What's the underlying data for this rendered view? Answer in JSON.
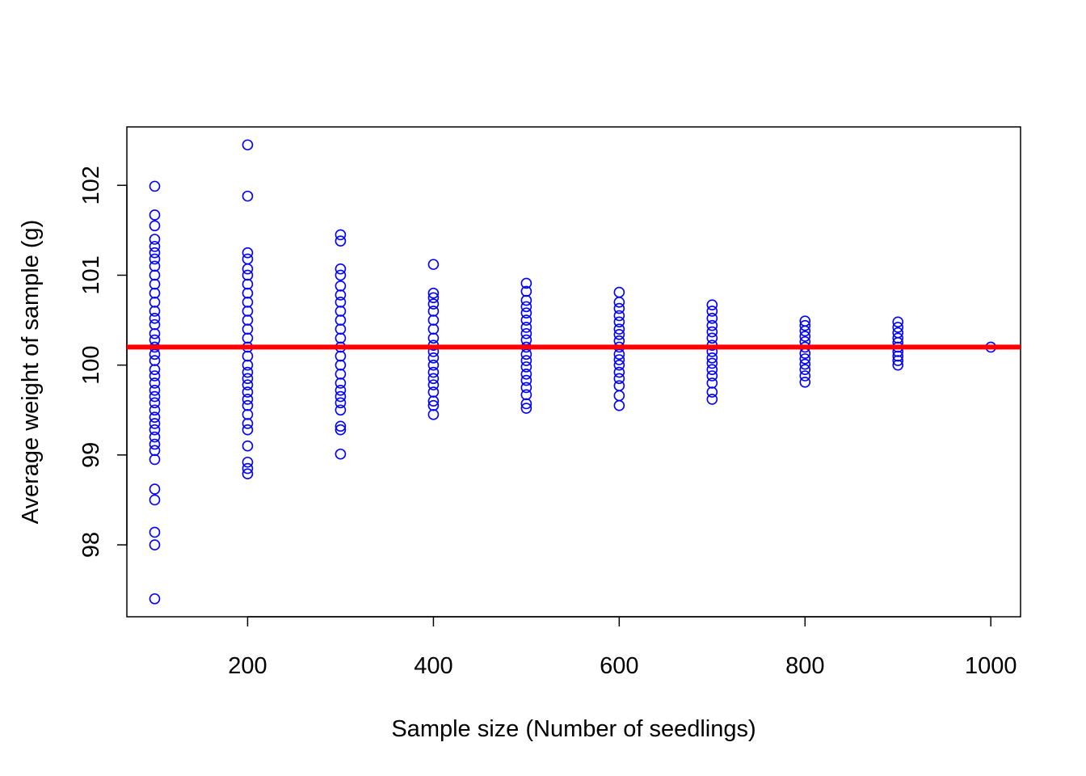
{
  "chart_data": {
    "type": "scatter",
    "title": "",
    "xlabel": "Sample size (Number of seedlings)",
    "ylabel": "Average weight of sample (g)",
    "xlim": [
      70,
      1032
    ],
    "ylim": [
      97.2,
      102.65
    ],
    "x_ticks": [
      200,
      400,
      600,
      800,
      1000
    ],
    "y_ticks": [
      98,
      99,
      100,
      101,
      102
    ],
    "grid": false,
    "legend": "none",
    "point_color": "#0000FF",
    "reference_line": {
      "y": 100.2,
      "color": "#FF0000"
    },
    "series": [
      {
        "points": [
          {
            "x": 100,
            "y": 97.4
          },
          {
            "x": 100,
            "y": 98.0
          },
          {
            "x": 100,
            "y": 98.14
          },
          {
            "x": 100,
            "y": 98.5
          },
          {
            "x": 100,
            "y": 98.62
          },
          {
            "x": 100,
            "y": 98.95
          },
          {
            "x": 100,
            "y": 99.05
          },
          {
            "x": 100,
            "y": 99.12
          },
          {
            "x": 100,
            "y": 99.2
          },
          {
            "x": 100,
            "y": 99.28
          },
          {
            "x": 100,
            "y": 99.35
          },
          {
            "x": 100,
            "y": 99.42
          },
          {
            "x": 100,
            "y": 99.5
          },
          {
            "x": 100,
            "y": 99.58
          },
          {
            "x": 100,
            "y": 99.65
          },
          {
            "x": 100,
            "y": 99.72
          },
          {
            "x": 100,
            "y": 99.8
          },
          {
            "x": 100,
            "y": 99.88
          },
          {
            "x": 100,
            "y": 99.95
          },
          {
            "x": 100,
            "y": 100.05
          },
          {
            "x": 100,
            "y": 100.12
          },
          {
            "x": 100,
            "y": 100.2
          },
          {
            "x": 100,
            "y": 100.28
          },
          {
            "x": 100,
            "y": 100.35
          },
          {
            "x": 100,
            "y": 100.45
          },
          {
            "x": 100,
            "y": 100.52
          },
          {
            "x": 100,
            "y": 100.6
          },
          {
            "x": 100,
            "y": 100.7
          },
          {
            "x": 100,
            "y": 100.8
          },
          {
            "x": 100,
            "y": 100.9
          },
          {
            "x": 100,
            "y": 101.0
          },
          {
            "x": 100,
            "y": 101.1
          },
          {
            "x": 100,
            "y": 101.18
          },
          {
            "x": 100,
            "y": 101.25
          },
          {
            "x": 100,
            "y": 101.32
          },
          {
            "x": 100,
            "y": 101.4
          },
          {
            "x": 100,
            "y": 101.55
          },
          {
            "x": 100,
            "y": 101.67
          },
          {
            "x": 100,
            "y": 101.99
          },
          {
            "x": 200,
            "y": 98.79
          },
          {
            "x": 200,
            "y": 98.85
          },
          {
            "x": 200,
            "y": 98.92
          },
          {
            "x": 200,
            "y": 99.1
          },
          {
            "x": 200,
            "y": 99.28
          },
          {
            "x": 200,
            "y": 99.35
          },
          {
            "x": 200,
            "y": 99.45
          },
          {
            "x": 200,
            "y": 99.55
          },
          {
            "x": 200,
            "y": 99.62
          },
          {
            "x": 200,
            "y": 99.7
          },
          {
            "x": 200,
            "y": 99.78
          },
          {
            "x": 200,
            "y": 99.85
          },
          {
            "x": 200,
            "y": 99.92
          },
          {
            "x": 200,
            "y": 100.0
          },
          {
            "x": 200,
            "y": 100.1
          },
          {
            "x": 200,
            "y": 100.2
          },
          {
            "x": 200,
            "y": 100.3
          },
          {
            "x": 200,
            "y": 100.4
          },
          {
            "x": 200,
            "y": 100.5
          },
          {
            "x": 200,
            "y": 100.6
          },
          {
            "x": 200,
            "y": 100.7
          },
          {
            "x": 200,
            "y": 100.8
          },
          {
            "x": 200,
            "y": 100.9
          },
          {
            "x": 200,
            "y": 101.0
          },
          {
            "x": 200,
            "y": 101.07
          },
          {
            "x": 200,
            "y": 101.18
          },
          {
            "x": 200,
            "y": 101.25
          },
          {
            "x": 200,
            "y": 101.88
          },
          {
            "x": 200,
            "y": 102.45
          },
          {
            "x": 300,
            "y": 99.01
          },
          {
            "x": 300,
            "y": 99.28
          },
          {
            "x": 300,
            "y": 99.32
          },
          {
            "x": 300,
            "y": 99.5
          },
          {
            "x": 300,
            "y": 99.58
          },
          {
            "x": 300,
            "y": 99.65
          },
          {
            "x": 300,
            "y": 99.72
          },
          {
            "x": 300,
            "y": 99.8
          },
          {
            "x": 300,
            "y": 99.9
          },
          {
            "x": 300,
            "y": 100.0
          },
          {
            "x": 300,
            "y": 100.1
          },
          {
            "x": 300,
            "y": 100.2
          },
          {
            "x": 300,
            "y": 100.3
          },
          {
            "x": 300,
            "y": 100.4
          },
          {
            "x": 300,
            "y": 100.5
          },
          {
            "x": 300,
            "y": 100.6
          },
          {
            "x": 300,
            "y": 100.7
          },
          {
            "x": 300,
            "y": 100.78
          },
          {
            "x": 300,
            "y": 100.88
          },
          {
            "x": 300,
            "y": 101.0
          },
          {
            "x": 300,
            "y": 101.07
          },
          {
            "x": 300,
            "y": 101.38
          },
          {
            "x": 300,
            "y": 101.45
          },
          {
            "x": 400,
            "y": 99.45
          },
          {
            "x": 400,
            "y": 99.55
          },
          {
            "x": 400,
            "y": 99.6
          },
          {
            "x": 400,
            "y": 99.7
          },
          {
            "x": 400,
            "y": 99.78
          },
          {
            "x": 400,
            "y": 99.85
          },
          {
            "x": 400,
            "y": 99.92
          },
          {
            "x": 400,
            "y": 100.0
          },
          {
            "x": 400,
            "y": 100.08
          },
          {
            "x": 400,
            "y": 100.15
          },
          {
            "x": 400,
            "y": 100.22
          },
          {
            "x": 400,
            "y": 100.3
          },
          {
            "x": 400,
            "y": 100.4
          },
          {
            "x": 400,
            "y": 100.5
          },
          {
            "x": 400,
            "y": 100.6
          },
          {
            "x": 400,
            "y": 100.68
          },
          {
            "x": 400,
            "y": 100.75
          },
          {
            "x": 400,
            "y": 100.8
          },
          {
            "x": 400,
            "y": 101.12
          },
          {
            "x": 500,
            "y": 99.52
          },
          {
            "x": 500,
            "y": 99.57
          },
          {
            "x": 500,
            "y": 99.67
          },
          {
            "x": 500,
            "y": 99.75
          },
          {
            "x": 500,
            "y": 99.83
          },
          {
            "x": 500,
            "y": 99.9
          },
          {
            "x": 500,
            "y": 99.98
          },
          {
            "x": 500,
            "y": 100.05
          },
          {
            "x": 500,
            "y": 100.12
          },
          {
            "x": 500,
            "y": 100.2
          },
          {
            "x": 500,
            "y": 100.28
          },
          {
            "x": 500,
            "y": 100.35
          },
          {
            "x": 500,
            "y": 100.42
          },
          {
            "x": 500,
            "y": 100.5
          },
          {
            "x": 500,
            "y": 100.58
          },
          {
            "x": 500,
            "y": 100.65
          },
          {
            "x": 500,
            "y": 100.72
          },
          {
            "x": 500,
            "y": 100.82
          },
          {
            "x": 500,
            "y": 100.91
          },
          {
            "x": 600,
            "y": 99.55
          },
          {
            "x": 600,
            "y": 99.66
          },
          {
            "x": 600,
            "y": 99.77
          },
          {
            "x": 600,
            "y": 99.85
          },
          {
            "x": 600,
            "y": 99.92
          },
          {
            "x": 600,
            "y": 100.0
          },
          {
            "x": 600,
            "y": 100.06
          },
          {
            "x": 600,
            "y": 100.12
          },
          {
            "x": 600,
            "y": 100.2
          },
          {
            "x": 600,
            "y": 100.27
          },
          {
            "x": 600,
            "y": 100.34
          },
          {
            "x": 600,
            "y": 100.4
          },
          {
            "x": 600,
            "y": 100.48
          },
          {
            "x": 600,
            "y": 100.55
          },
          {
            "x": 600,
            "y": 100.63
          },
          {
            "x": 600,
            "y": 100.7
          },
          {
            "x": 600,
            "y": 100.81
          },
          {
            "x": 700,
            "y": 99.62
          },
          {
            "x": 700,
            "y": 99.7
          },
          {
            "x": 700,
            "y": 99.8
          },
          {
            "x": 700,
            "y": 99.88
          },
          {
            "x": 700,
            "y": 99.95
          },
          {
            "x": 700,
            "y": 100.02
          },
          {
            "x": 700,
            "y": 100.08
          },
          {
            "x": 700,
            "y": 100.15
          },
          {
            "x": 700,
            "y": 100.22
          },
          {
            "x": 700,
            "y": 100.3
          },
          {
            "x": 700,
            "y": 100.37
          },
          {
            "x": 700,
            "y": 100.44
          },
          {
            "x": 700,
            "y": 100.52
          },
          {
            "x": 700,
            "y": 100.6
          },
          {
            "x": 700,
            "y": 100.67
          },
          {
            "x": 800,
            "y": 99.81
          },
          {
            "x": 800,
            "y": 99.88
          },
          {
            "x": 800,
            "y": 99.95
          },
          {
            "x": 800,
            "y": 100.01
          },
          {
            "x": 800,
            "y": 100.07
          },
          {
            "x": 800,
            "y": 100.13
          },
          {
            "x": 800,
            "y": 100.2
          },
          {
            "x": 800,
            "y": 100.26
          },
          {
            "x": 800,
            "y": 100.32
          },
          {
            "x": 800,
            "y": 100.38
          },
          {
            "x": 800,
            "y": 100.44
          },
          {
            "x": 800,
            "y": 100.49
          },
          {
            "x": 900,
            "y": 100.0
          },
          {
            "x": 900,
            "y": 100.05
          },
          {
            "x": 900,
            "y": 100.1
          },
          {
            "x": 900,
            "y": 100.15
          },
          {
            "x": 900,
            "y": 100.2
          },
          {
            "x": 900,
            "y": 100.25
          },
          {
            "x": 900,
            "y": 100.3
          },
          {
            "x": 900,
            "y": 100.36
          },
          {
            "x": 900,
            "y": 100.42
          },
          {
            "x": 900,
            "y": 100.48
          },
          {
            "x": 1000,
            "y": 100.2
          }
        ]
      }
    ]
  }
}
